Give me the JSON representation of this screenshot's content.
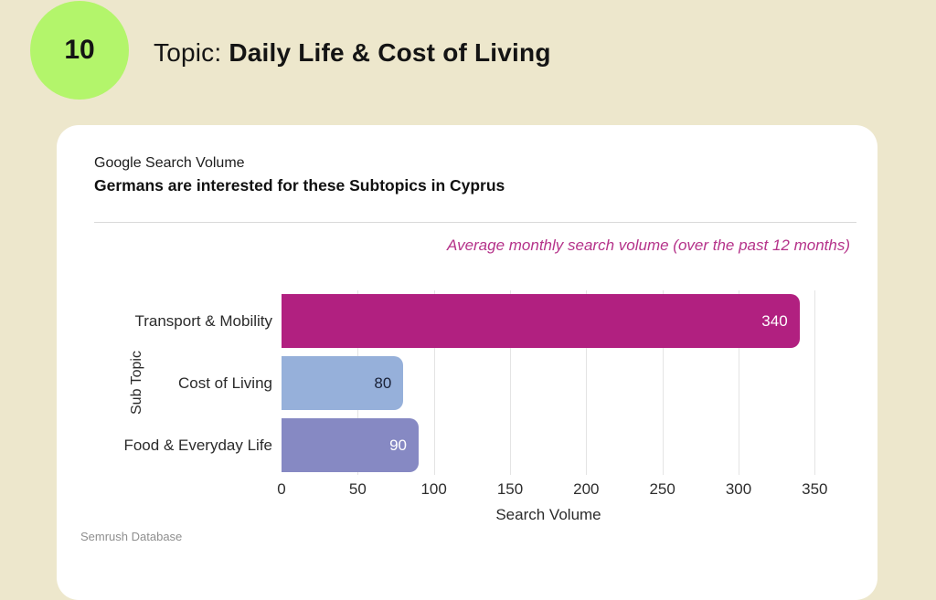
{
  "page": {
    "slide_number": "10",
    "title_prefix": "Topic: ",
    "title_bold": "Daily Life & Cost of Living"
  },
  "colors": {
    "page_background": "#EDE7CC",
    "badge_green": "#B3F56B",
    "card_background": "#FFFFFF",
    "note_pink": "#B5338A",
    "gridline": "#E4E4E4"
  },
  "card": {
    "subtitle": "Google Search Volume",
    "heading": "Germans are interested for these Subtopics in Cyprus",
    "note": "Average monthly search volume (over the past 12 months)",
    "source": "Semrush Database"
  },
  "chart_data": {
    "type": "bar",
    "orientation": "horizontal",
    "categories": [
      "Transport & Mobility",
      "Cost of Living",
      "Food & Everyday Life"
    ],
    "values": [
      340,
      80,
      90
    ],
    "bar_colors": [
      "#B12080",
      "#96B0DA",
      "#8689C3"
    ],
    "value_label_colors": [
      "#FFFFFF",
      "#1A2238",
      "#FFFFFF"
    ],
    "xlabel": "Search Volume",
    "ylabel": "Sub Topic",
    "xlim": [
      0,
      360
    ],
    "xticks": [
      0,
      50,
      100,
      150,
      200,
      250,
      300,
      350
    ],
    "grid": true,
    "legend": false
  }
}
